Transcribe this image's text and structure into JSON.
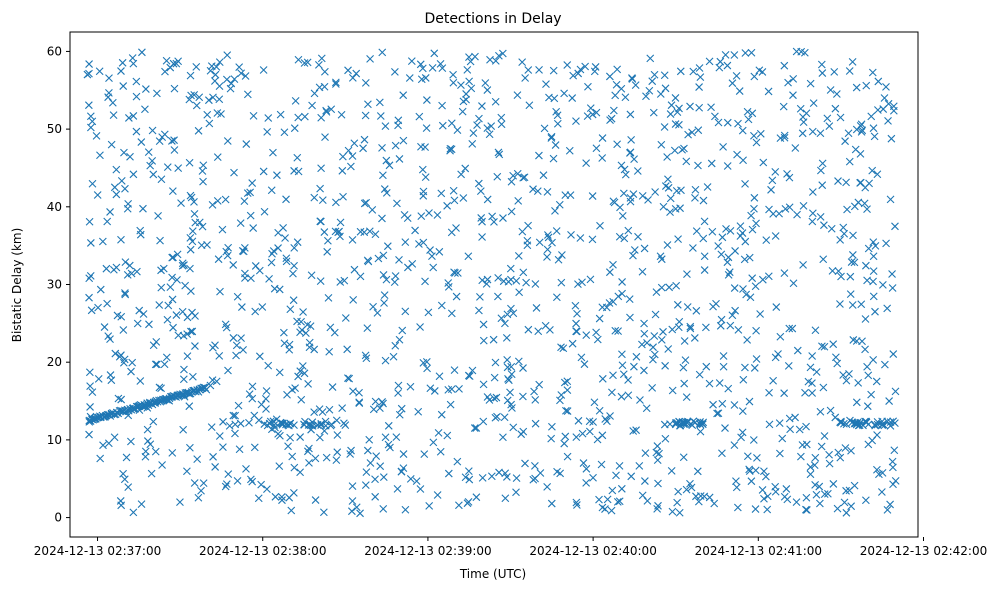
{
  "chart_data": {
    "type": "scatter",
    "title": "Detections in Delay",
    "xlabel": "Time (UTC)",
    "ylabel": "Bistatic Delay (km)",
    "xlim": [
      "2024-12-13 02:36:50",
      "2024-12-13 02:41:58"
    ],
    "ylim": [
      -2.5,
      62.5
    ],
    "xticks": [
      "2024-12-13 02:37:00",
      "2024-12-13 02:38:00",
      "2024-12-13 02:39:00",
      "2024-12-13 02:40:00",
      "2024-12-13 02:41:00",
      "2024-12-13 02:42:00"
    ],
    "yticks": [
      0,
      10,
      20,
      30,
      40,
      50,
      60
    ],
    "marker": "x",
    "grid": false,
    "color": "#1f77b4",
    "x_range": [
      "2024-12-13 02:36:56",
      "2024-12-13 02:41:50"
    ],
    "series": [
      {
        "values_note": "",
        "x": [
          "2024-12-13 02:36:57",
          "2024-12-13 02:36:59",
          "2024-12-13 02:37:01",
          "2024-12-13 02:37:03",
          "2024-12-13 02:37:05",
          "2024-12-13 02:37:07",
          "2024-12-13 02:37:09",
          "2024-12-13 02:37:11",
          "2024-12-13 02:37:13",
          "2024-12-13 02:37:15",
          "2024-12-13 02:37:17",
          "2024-12-13 02:37:19",
          "2024-12-13 02:37:21",
          "2024-12-13 02:37:23",
          "2024-12-13 02:37:25",
          "2024-12-13 02:37:27",
          "2024-12-13 02:37:29",
          "2024-12-13 02:37:31",
          "2024-12-13 02:37:33",
          "2024-12-13 02:37:35",
          "2024-12-13 02:37:37",
          "2024-12-13 02:37:39",
          "2024-12-13 02:37:41",
          "2024-12-13 02:37:48",
          "2024-12-13 02:37:50",
          "2024-12-13 02:37:52",
          "2024-12-13 02:37:55",
          "2024-12-13 02:38:10",
          "2024-12-13 02:38:15",
          "2024-12-13 02:38:20",
          "2024-12-13 02:38:25",
          "2024-12-13 02:38:30",
          "2024-12-13 02:40:00",
          "2024-12-13 02:40:05",
          "2024-12-13 02:40:30",
          "2024-12-13 02:40:33",
          "2024-12-13 02:40:36",
          "2024-12-13 02:40:39",
          "2024-12-13 02:41:30",
          "2024-12-13 02:41:35",
          "2024-12-13 02:41:40",
          "2024-12-13 02:41:45",
          "2024-12-13 02:41:48"
        ],
        "y": [
          12.5,
          12.7,
          12.9,
          13.1,
          13.3,
          13.5,
          13.7,
          13.9,
          14.1,
          14.3,
          14.5,
          14.7,
          14.9,
          15.1,
          15.3,
          15.5,
          15.7,
          15.9,
          16.1,
          16.3,
          16.5,
          16.7,
          17.0,
          11.8,
          12.0,
          12.1,
          12.2,
          12.1,
          12.0,
          11.9,
          12.0,
          11.9,
          12.3,
          12.4,
          12.0,
          12.1,
          11.9,
          12.0,
          12.2,
          12.1,
          12.0,
          11.9,
          11.8
        ]
      }
    ]
  }
}
